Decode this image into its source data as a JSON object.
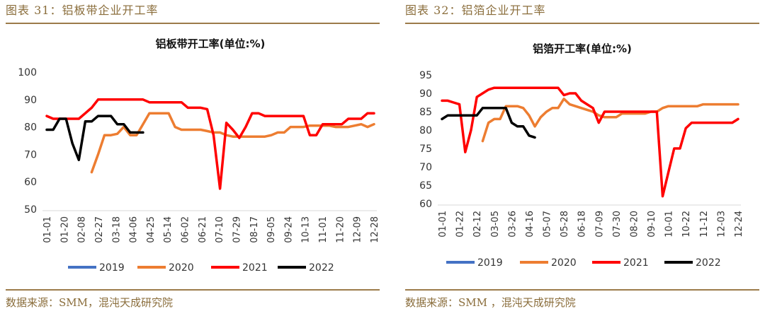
{
  "left_figure": {
    "caption": "图表 31：铝板带企业开工率",
    "source": "数据来源：SMM，混沌天成研究院"
  },
  "right_figure": {
    "caption": "图表 32：铝箔企业开工率",
    "source": "数据来源：SMM ，混沌天成研究院"
  },
  "colors": {
    "2019": "#4472c4",
    "2020": "#ed7d31",
    "2021": "#ff0000",
    "2022": "#000000"
  },
  "chart_data": [
    {
      "type": "line",
      "title": "铝板带开工率(单位:%)",
      "ylim": [
        50,
        100
      ],
      "yticks": [
        50,
        60,
        70,
        80,
        90,
        100
      ],
      "xticks": [
        "01-01",
        "01-20",
        "02-08",
        "02-27",
        "03-18",
        "04-06",
        "04-25",
        "05-14",
        "06-02",
        "06-21",
        "07-10",
        "07-29",
        "08-17",
        "09-05",
        "09-24",
        "10-13",
        "11-01",
        "11-20",
        "12-09",
        "12-28"
      ],
      "legend_position": "bottom",
      "series": [
        {
          "name": "2019",
          "x": [],
          "y": []
        },
        {
          "name": "2020",
          "x": [
            8,
            9,
            10,
            11,
            12,
            13,
            14,
            15,
            16,
            17,
            18,
            19,
            20,
            21,
            22,
            23,
            24,
            25,
            26,
            27,
            28,
            29,
            30,
            31,
            32,
            33,
            34,
            35,
            36,
            37,
            38,
            39,
            40,
            41,
            42,
            43,
            44,
            45,
            46,
            47,
            48,
            49,
            50,
            51,
            52
          ],
          "y": [
            63.5,
            70,
            77,
            77,
            77.5,
            80,
            77,
            77,
            81,
            85,
            85,
            85,
            85,
            80,
            79,
            79,
            79,
            79,
            78.5,
            78,
            78,
            77,
            76.5,
            76.5,
            76.5,
            76.5,
            76.5,
            76.5,
            77,
            78,
            78,
            80,
            80,
            80,
            80.5,
            80.5,
            80.5,
            80.5,
            80,
            80,
            80,
            80.5,
            81,
            80,
            81
          ]
        },
        {
          "name": "2021",
          "x": [
            1,
            2,
            3,
            4,
            5,
            6,
            7,
            8,
            9,
            10,
            11,
            12,
            13,
            14,
            15,
            16,
            17,
            18,
            19,
            20,
            21,
            22,
            23,
            24,
            25,
            26,
            27,
            28,
            29,
            30,
            31,
            32,
            33,
            34,
            35,
            36,
            37,
            38,
            39,
            40,
            41,
            42,
            43,
            44,
            45,
            46,
            47,
            48,
            49,
            50,
            51,
            52
          ],
          "y": [
            84,
            83,
            83,
            83,
            83,
            83,
            85,
            87,
            90,
            90,
            90,
            90,
            90,
            90,
            90,
            90,
            89,
            89,
            89,
            89,
            89,
            89,
            87,
            87,
            87,
            86.5,
            77,
            57.5,
            81.5,
            79,
            76,
            80,
            85,
            85,
            84,
            84,
            84,
            84,
            84,
            84,
            84,
            77,
            77,
            81,
            81,
            81,
            81,
            83,
            83,
            83,
            85,
            85
          ]
        },
        {
          "name": "2022",
          "x": [
            1,
            2,
            3,
            4,
            5,
            6,
            7,
            8,
            9,
            10,
            11,
            12,
            13,
            14,
            15,
            16
          ],
          "y": [
            79,
            79,
            83,
            83,
            74,
            68,
            82,
            82,
            84,
            84,
            84,
            81,
            81,
            78,
            78,
            78
          ]
        }
      ]
    },
    {
      "type": "line",
      "title": "铝箔开工率(单位:%)",
      "ylim": [
        60,
        95
      ],
      "yticks": [
        60,
        65,
        70,
        75,
        80,
        85,
        90,
        95
      ],
      "xticks": [
        "01-01",
        "01-22",
        "02-12",
        "03-05",
        "03-26",
        "04-16",
        "05-07",
        "05-28",
        "06-18",
        "07-09",
        "07-30",
        "08-20",
        "09-10",
        "10-01",
        "10-22",
        "11-12",
        "12-03",
        "12-24"
      ],
      "legend_position": "bottom",
      "series": [
        {
          "name": "2019",
          "x": [],
          "y": []
        },
        {
          "name": "2020",
          "x": [
            8,
            9,
            10,
            11,
            12,
            13,
            14,
            15,
            16,
            17,
            18,
            19,
            20,
            21,
            22,
            23,
            24,
            25,
            26,
            27,
            28,
            29,
            30,
            31,
            32,
            33,
            34,
            35,
            36,
            37,
            38,
            39,
            40,
            41,
            42,
            43,
            44,
            45,
            46,
            47,
            48,
            49,
            50,
            51,
            52
          ],
          "y": [
            77,
            82,
            83,
            83,
            86.5,
            86.5,
            86.5,
            86,
            84,
            81,
            83.5,
            85,
            86,
            86,
            88.5,
            87,
            86.5,
            86,
            85.5,
            85,
            84,
            83.5,
            83.5,
            83.5,
            84.5,
            84.5,
            84.5,
            84.5,
            84.5,
            85,
            85,
            86,
            86.5,
            86.5,
            86.5,
            86.5,
            86.5,
            86.5,
            87,
            87,
            87,
            87,
            87,
            87,
            87
          ]
        },
        {
          "name": "2021",
          "x": [
            1,
            2,
            3,
            4,
            5,
            6,
            7,
            8,
            9,
            10,
            11,
            12,
            13,
            14,
            15,
            16,
            17,
            18,
            19,
            20,
            21,
            22,
            23,
            24,
            25,
            26,
            27,
            28,
            29,
            30,
            31,
            32,
            33,
            34,
            35,
            36,
            37,
            38,
            39,
            40,
            41,
            42,
            43,
            44,
            45,
            46,
            47,
            48,
            49,
            50,
            51,
            52
          ],
          "y": [
            88,
            88,
            87.5,
            87,
            74,
            80,
            89,
            90,
            91,
            91.5,
            91.5,
            91.5,
            91.5,
            91.5,
            91.5,
            91.5,
            91.5,
            91.5,
            91.5,
            91.5,
            91.5,
            89.5,
            90,
            90,
            88,
            87,
            86,
            82,
            85,
            85,
            85,
            85,
            85,
            85,
            85,
            85,
            85,
            85,
            62,
            68.5,
            75,
            75,
            80.5,
            82,
            82,
            82,
            82,
            82,
            82,
            82,
            82,
            83
          ]
        },
        {
          "name": "2022",
          "x": [
            1,
            2,
            3,
            4,
            5,
            6,
            7,
            8,
            9,
            10,
            11,
            12,
            13,
            14,
            15,
            16,
            17
          ],
          "y": [
            83,
            84,
            84,
            84,
            84,
            84,
            84,
            86,
            86,
            86,
            86,
            86,
            82,
            81,
            81,
            78.5,
            78
          ]
        }
      ]
    }
  ]
}
